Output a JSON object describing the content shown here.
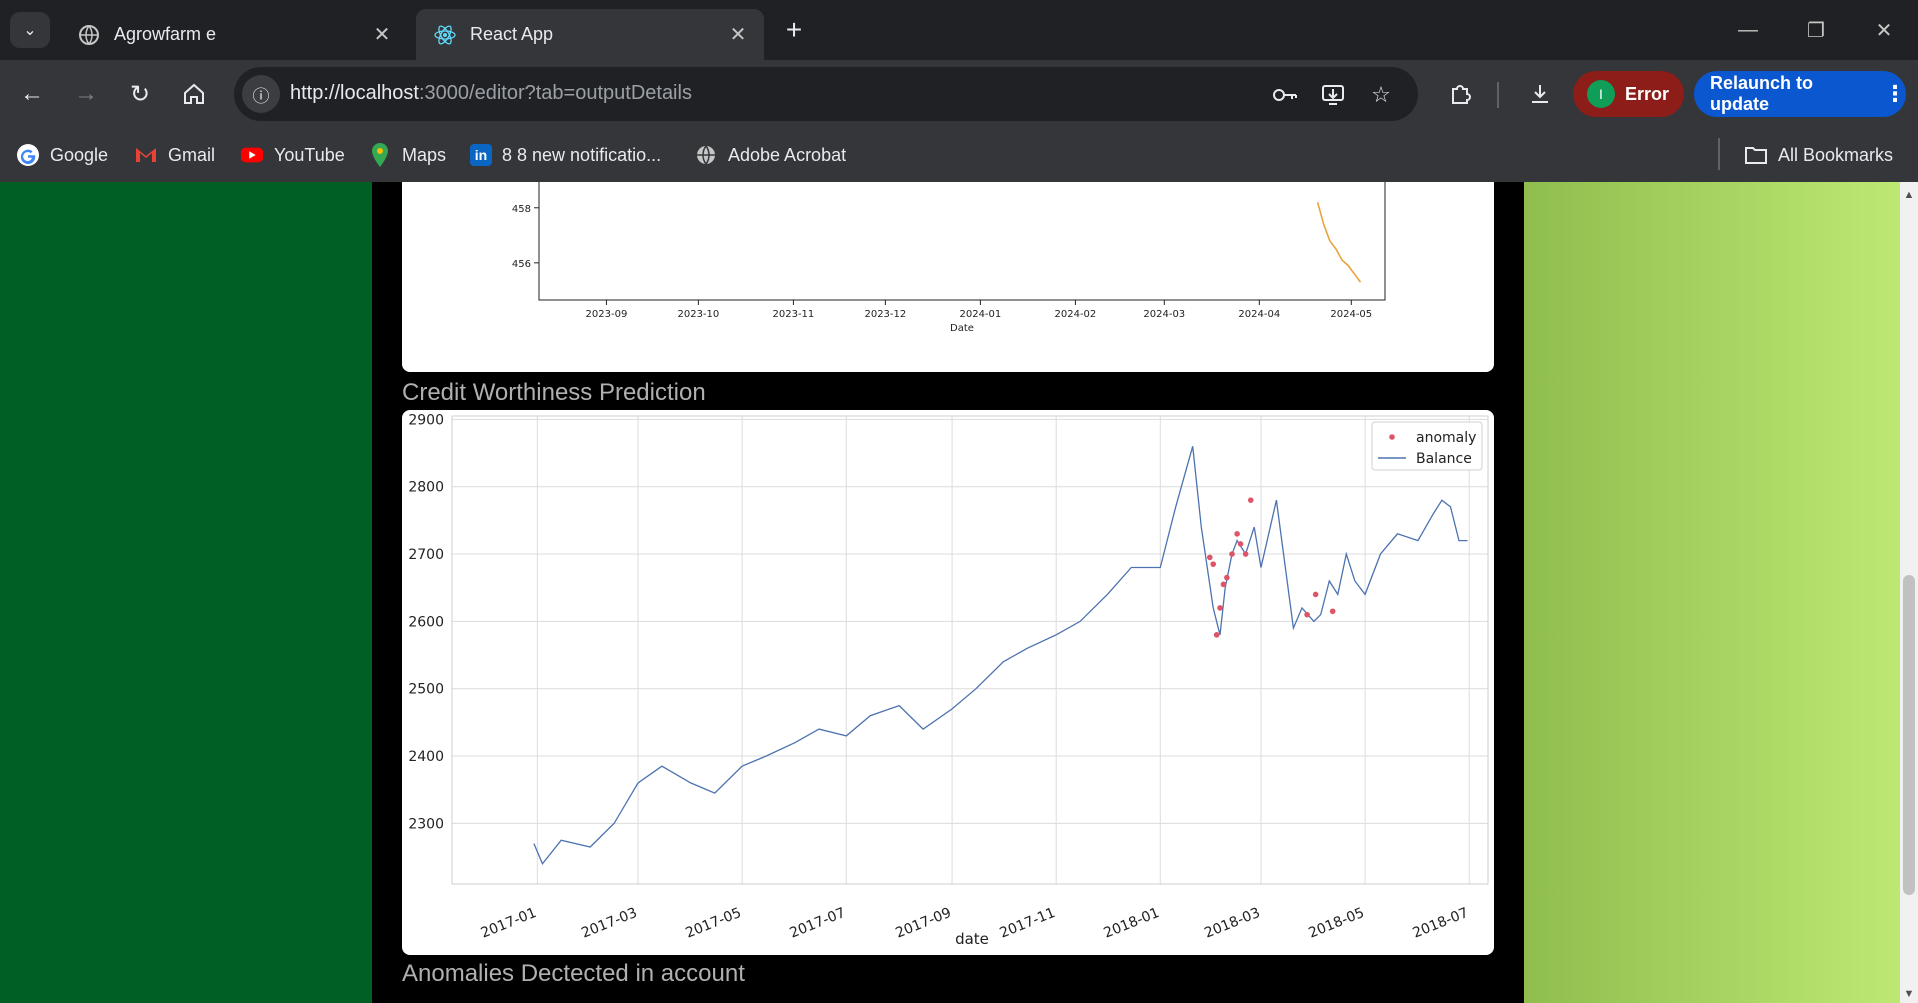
{
  "browser": {
    "tabs": [
      {
        "title": "Agrowfarm e",
        "icon": "globe-icon",
        "active": false
      },
      {
        "title": "React App",
        "icon": "react-logo-icon",
        "active": true
      }
    ],
    "url_host": "http://localhost",
    "url_rest": ":3000/editor?tab=outputDetails",
    "error_label": "Error",
    "profile_initial": "I",
    "relaunch_label": "Relaunch to update",
    "bookmarks": [
      {
        "label": "Google",
        "icon": "google-icon"
      },
      {
        "label": "Gmail",
        "icon": "gmail-icon"
      },
      {
        "label": "YouTube",
        "icon": "youtube-icon"
      },
      {
        "label": "Maps",
        "icon": "maps-icon"
      },
      {
        "label": "8 8 new notificatio...",
        "icon": "linkedin-icon"
      },
      {
        "label": "Adobe Acrobat",
        "icon": "globe-icon"
      }
    ],
    "all_bookmarks_label": "All Bookmarks"
  },
  "page": {
    "section_credit": "Credit Worthiness Prediction",
    "section_anomalies": "Anomalies Dectected in account"
  },
  "chart_data": [
    {
      "type": "line",
      "xlabel": "Date",
      "x_ticks": [
        "2023-09",
        "2023-10",
        "2023-11",
        "2023-12",
        "2024-01",
        "2024-02",
        "2024-03",
        "2024-04",
        "2024-05"
      ],
      "y_ticks_visible": [
        458,
        456
      ],
      "series": [
        {
          "color": "#e8a33d",
          "x": [
            "2024-04-20",
            "2024-04-22",
            "2024-04-24",
            "2024-04-26",
            "2024-04-28",
            "2024-04-30",
            "2024-05-02",
            "2024-05-04"
          ],
          "y": [
            458.2,
            457.4,
            456.8,
            456.5,
            456.1,
            455.9,
            455.6,
            455.3
          ]
        }
      ]
    },
    {
      "type": "line",
      "xlabel": "date",
      "ylim": [
        2210,
        2905
      ],
      "y_ticks": [
        2300,
        2400,
        2500,
        2600,
        2700,
        2800,
        2900
      ],
      "x_ticks": [
        "2017-01",
        "2017-03",
        "2017-05",
        "2017-07",
        "2017-09",
        "2017-11",
        "2018-01",
        "2018-03",
        "2018-05",
        "2018-07"
      ],
      "grid": true,
      "legend": "top-right",
      "series": [
        {
          "name": "Balance",
          "color": "#4c72b0",
          "x": [
            "2016-12-30",
            "2017-01-04",
            "2017-01-15",
            "2017-02-01",
            "2017-02-15",
            "2017-03-01",
            "2017-03-15",
            "2017-04-01",
            "2017-04-15",
            "2017-05-01",
            "2017-05-15",
            "2017-06-01",
            "2017-06-15",
            "2017-07-01",
            "2017-07-15",
            "2017-08-01",
            "2017-08-15",
            "2017-09-01",
            "2017-09-15",
            "2017-10-01",
            "2017-10-15",
            "2017-11-01",
            "2017-11-15",
            "2017-12-01",
            "2017-12-15",
            "2018-01-01",
            "2018-01-10",
            "2018-01-20",
            "2018-01-25",
            "2018-02-01",
            "2018-02-05",
            "2018-02-08",
            "2018-02-12",
            "2018-02-15",
            "2018-02-20",
            "2018-02-25",
            "2018-03-01",
            "2018-03-10",
            "2018-03-20",
            "2018-03-25",
            "2018-04-01",
            "2018-04-05",
            "2018-04-10",
            "2018-04-15",
            "2018-04-20",
            "2018-04-25",
            "2018-05-01",
            "2018-05-10",
            "2018-05-20",
            "2018-06-01",
            "2018-06-10",
            "2018-06-15",
            "2018-06-20",
            "2018-06-25",
            "2018-06-30"
          ],
          "y": [
            2270,
            2240,
            2275,
            2265,
            2300,
            2360,
            2385,
            2360,
            2345,
            2385,
            2400,
            2420,
            2440,
            2430,
            2460,
            2475,
            2440,
            2470,
            2500,
            2540,
            2560,
            2580,
            2600,
            2640,
            2680,
            2680,
            2770,
            2860,
            2740,
            2620,
            2580,
            2650,
            2700,
            2720,
            2700,
            2740,
            2680,
            2780,
            2590,
            2620,
            2600,
            2610,
            2660,
            2640,
            2700,
            2660,
            2640,
            2700,
            2730,
            2720,
            2760,
            2780,
            2770,
            2720,
            2720
          ]
        },
        {
          "name": "anomaly",
          "color": "#dd5566",
          "marker": "dot",
          "x": [
            "2018-01-30",
            "2018-02-01",
            "2018-02-03",
            "2018-02-05",
            "2018-02-07",
            "2018-02-09",
            "2018-02-12",
            "2018-02-15",
            "2018-02-17",
            "2018-02-20",
            "2018-02-23",
            "2018-03-28",
            "2018-04-02",
            "2018-04-12"
          ],
          "y": [
            2695,
            2685,
            2580,
            2620,
            2655,
            2665,
            2700,
            2730,
            2715,
            2700,
            2780,
            2610,
            2640,
            2615
          ]
        }
      ]
    }
  ]
}
